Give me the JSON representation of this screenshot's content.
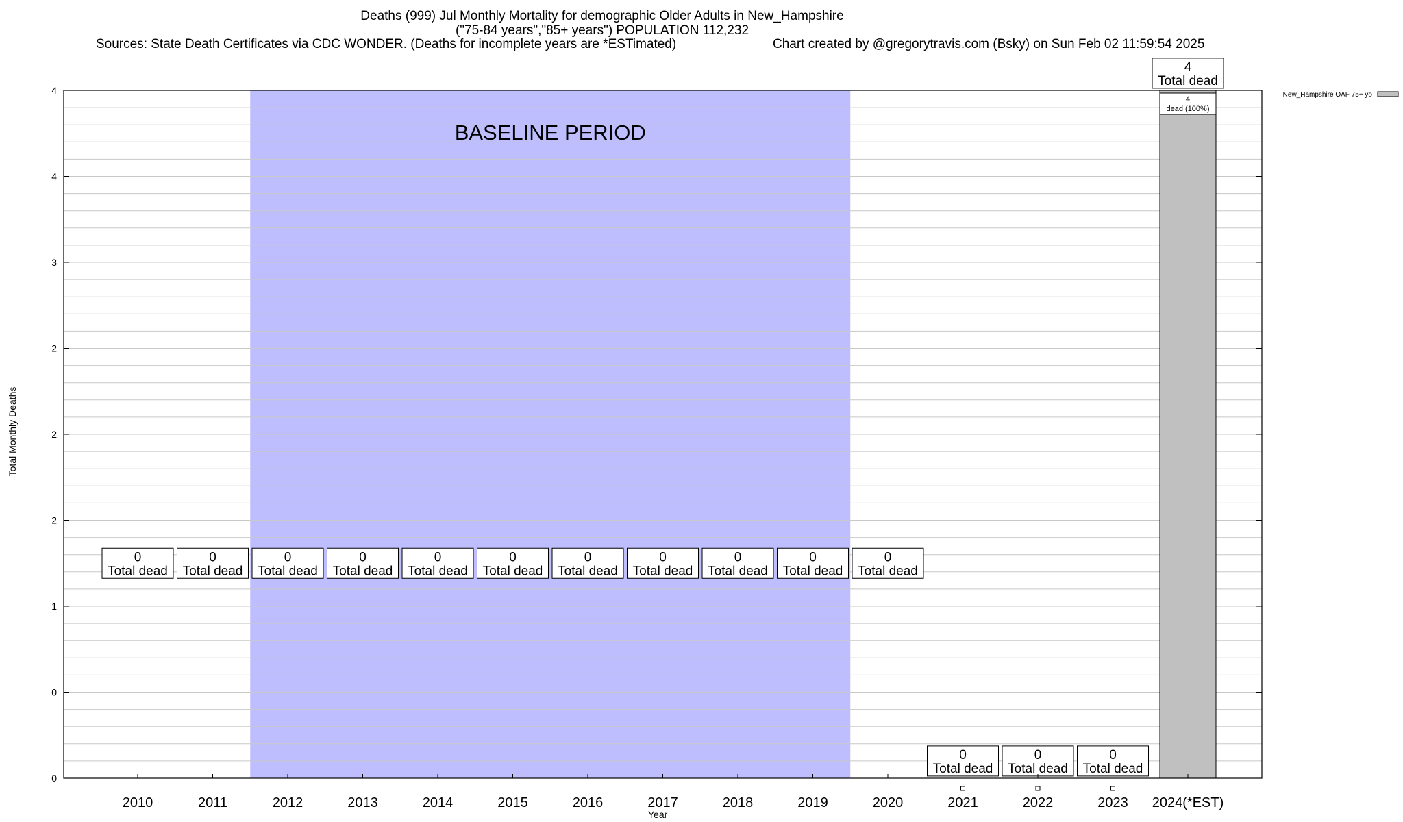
{
  "header": {
    "title_line1": "Deaths (999) Jul Monthly Mortality for demographic Older Adults in New_Hampshire",
    "title_line2": "(\"75-84 years\",\"85+ years\") POPULATION 112,232",
    "sources": "Sources: State Death Certificates via CDC WONDER. (Deaths for incomplete years are *ESTimated)",
    "credit": "Chart created by @gregorytravis.com (Bsky) on Sun Feb 02 11:59:54 2025"
  },
  "chart_data": {
    "type": "bar",
    "title": "Deaths (999) Jul Monthly Mortality for demographic Older Adults in New_Hampshire",
    "subtitle": "(\"75-84 years\",\"85+ years\") POPULATION 112,232",
    "xlabel": "Year",
    "ylabel": "Total Monthly Deaths",
    "ylim": [
      0,
      4
    ],
    "y_tick_values": [
      0,
      0.5,
      1,
      1.5,
      2,
      2.5,
      3,
      3.5,
      4
    ],
    "y_tick_labels": [
      "0",
      "0",
      "1",
      "2",
      "2",
      "2",
      "3",
      "4",
      "4"
    ],
    "categories": [
      "2010",
      "2011",
      "2012",
      "2013",
      "2014",
      "2015",
      "2016",
      "2017",
      "2018",
      "2019",
      "2020",
      "2021",
      "2022",
      "2023",
      "2024(*EST)"
    ],
    "series": [
      {
        "name": "New_Hampshire OAF 75+ yo",
        "values": [
          null,
          null,
          null,
          null,
          null,
          null,
          null,
          null,
          null,
          null,
          null,
          0,
          0,
          0,
          4
        ]
      }
    ],
    "total_labels": [
      {
        "category": "2010",
        "value": "0",
        "text": "Total dead",
        "at_value": 1.25
      },
      {
        "category": "2011",
        "value": "0",
        "text": "Total dead",
        "at_value": 1.25
      },
      {
        "category": "2012",
        "value": "0",
        "text": "Total dead",
        "at_value": 1.25
      },
      {
        "category": "2013",
        "value": "0",
        "text": "Total dead",
        "at_value": 1.25
      },
      {
        "category": "2014",
        "value": "0",
        "text": "Total dead",
        "at_value": 1.25
      },
      {
        "category": "2015",
        "value": "0",
        "text": "Total dead",
        "at_value": 1.25
      },
      {
        "category": "2016",
        "value": "0",
        "text": "Total dead",
        "at_value": 1.25
      },
      {
        "category": "2017",
        "value": "0",
        "text": "Total dead",
        "at_value": 1.25
      },
      {
        "category": "2018",
        "value": "0",
        "text": "Total dead",
        "at_value": 1.25
      },
      {
        "category": "2019",
        "value": "0",
        "text": "Total dead",
        "at_value": 1.25
      },
      {
        "category": "2020",
        "value": "0",
        "text": "Total dead",
        "at_value": 1.25
      },
      {
        "category": "2021",
        "value": "0",
        "text": "Total dead",
        "at_value": 0.1
      },
      {
        "category": "2022",
        "value": "0",
        "text": "Total dead",
        "at_value": 0.1
      },
      {
        "category": "2023",
        "value": "0",
        "text": "Total dead",
        "at_value": 0.1
      },
      {
        "category": "2024(*EST)",
        "value": "4",
        "text": "Total dead",
        "at_value": 4.1
      }
    ],
    "segment_labels": [
      {
        "category": "2024(*EST)",
        "line1": "4",
        "line2": "dead (100%)"
      }
    ],
    "baseline": {
      "label": "BASELINE PERIOD",
      "from": "2012",
      "to": "2019",
      "color": "#bebefe"
    },
    "bar_color": "#c0c0c0",
    "legend_position": "top-right",
    "grid": true
  }
}
